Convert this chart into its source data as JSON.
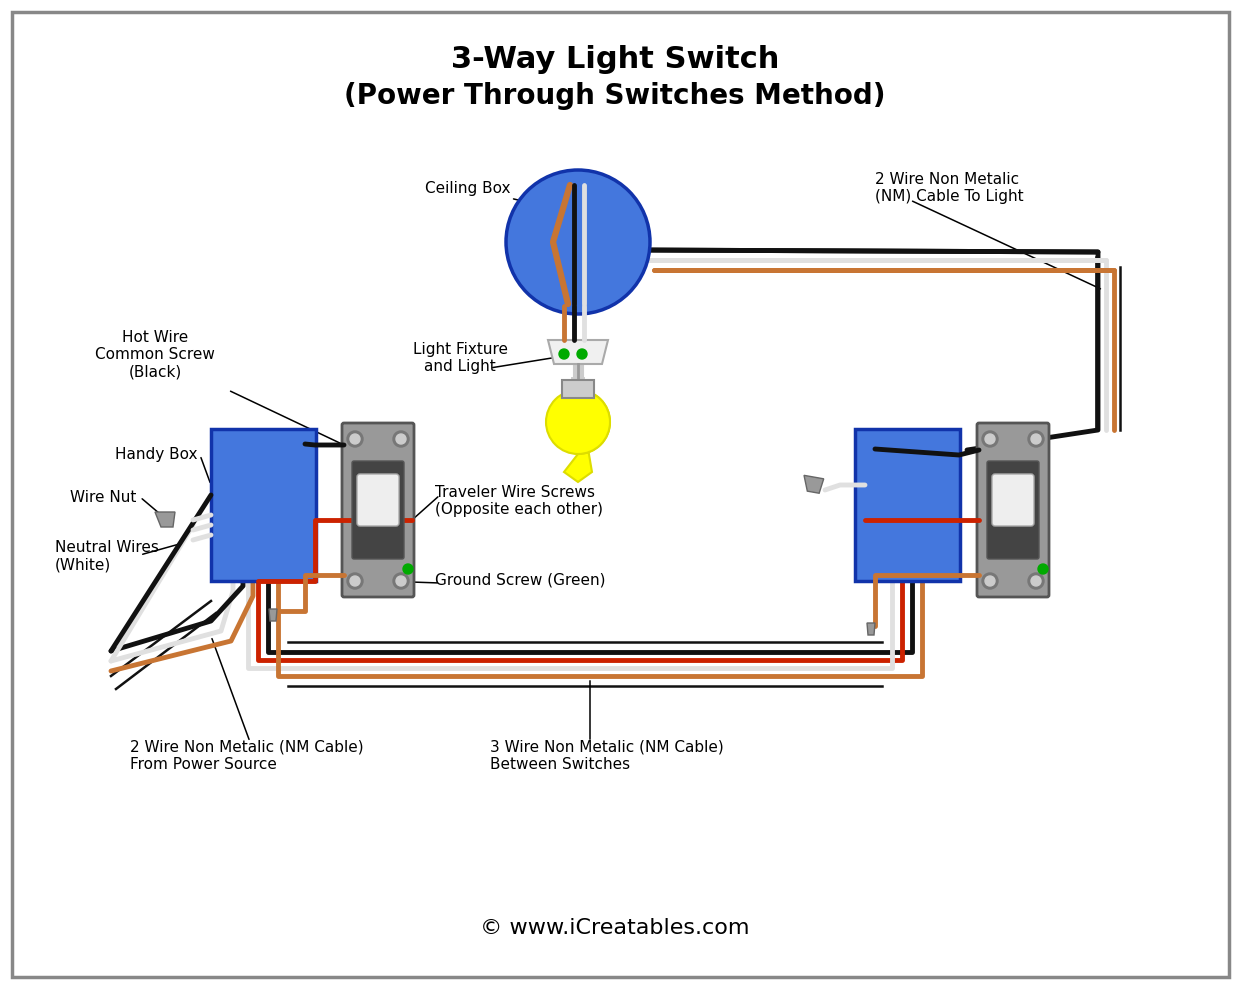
{
  "title1": "3-Way Light Switch",
  "title2": "(Power Through Switches Method)",
  "copyright": "© www.iCreatables.com",
  "bg": "#ffffff",
  "border_color": "#aaaaaa",
  "colors": {
    "black": "#111111",
    "white_wire": "#e0e0e0",
    "red": "#cc2200",
    "copper": "#c87533",
    "box_blue": "#4477dd",
    "box_border": "#1133aa",
    "switch_gray": "#999999",
    "switch_dark": "#444444",
    "switch_white": "#eeeeee",
    "hole_gray": "#777777",
    "hole_light": "#cccccc",
    "green_screw": "#00aa00",
    "yellow": "#ffff00",
    "wire_nut": "#999999",
    "wire_nut_border": "#666666",
    "fixture_white": "#f0f0f0",
    "green_contact": "#00aa00"
  },
  "labels": {
    "ceiling_box": "Ceiling Box",
    "nm_cable_light": "2 Wire Non Metalic\n(NM) Cable To Light",
    "hot_wire": "Hot Wire\nCommon Screw\n(Black)",
    "light_fixture": "Light Fixture\nand Light",
    "handy_box": "Handy Box",
    "wire_nut": "Wire Nut",
    "neutral_wires": "Neutral Wires\n(White)",
    "traveler_screws": "Traveler Wire Screws\n(Opposite each other)",
    "ground_screw": "Ground Screw (Green)",
    "nm_power": "2 Wire Non Metalic (NM Cable)\nFrom Power Source",
    "nm_switches": "3 Wire Non Metalic (NM Cable)\nBetween Switches"
  },
  "lw": 3.5,
  "lw_cable": 1.8
}
